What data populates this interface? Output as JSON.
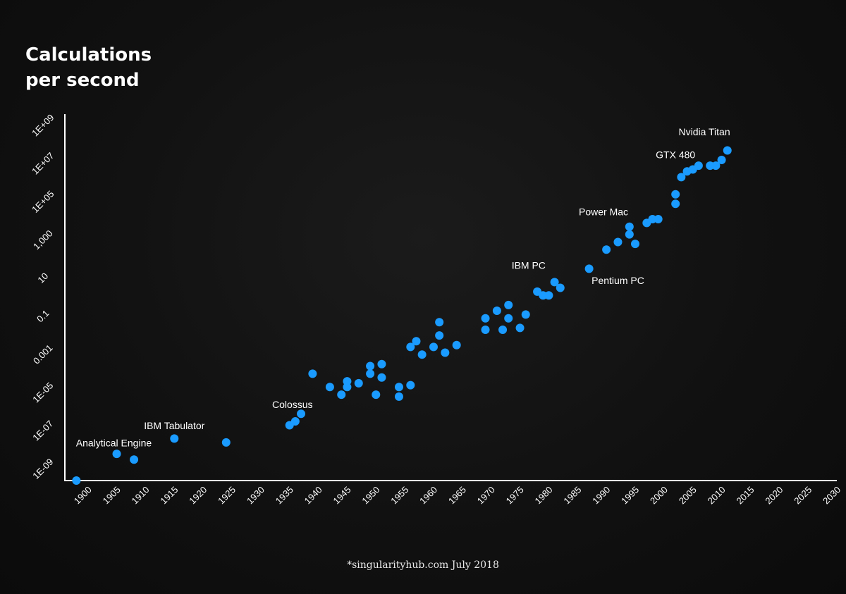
{
  "title_line1": "Calculations",
  "title_line2": "per second",
  "source": "*singularityhub.com July 2018",
  "colors": {
    "point": "#1a9bff",
    "axis": "#ffffff",
    "background": "#111111",
    "text": "#ffffff"
  },
  "chart_data": {
    "type": "scatter",
    "title": "Calculations per second",
    "xlabel": "",
    "ylabel": "",
    "xlim": [
      1897,
      2031
    ],
    "ylim": [
      -9.5,
      9.7
    ],
    "y_scale": "log",
    "grid": false,
    "x_ticks": [
      1900,
      1905,
      1910,
      1915,
      1920,
      1925,
      1930,
      1935,
      1940,
      1945,
      1950,
      1955,
      1960,
      1965,
      1970,
      1975,
      1980,
      1985,
      1990,
      1995,
      2000,
      2005,
      2010,
      2015,
      2020,
      2025,
      2030
    ],
    "y_ticks": [
      {
        "label": "1E-09",
        "log10": -9
      },
      {
        "label": "1E-07",
        "log10": -7
      },
      {
        "label": "1E-05",
        "log10": -5
      },
      {
        "label": "0.001",
        "log10": -3
      },
      {
        "label": "0.1",
        "log10": -1
      },
      {
        "label": "10",
        "log10": 1
      },
      {
        "label": "1,000",
        "log10": 3
      },
      {
        "label": "1E+05",
        "log10": 5
      },
      {
        "label": "1E+07",
        "log10": 7
      },
      {
        "label": "1E+09",
        "log10": 9
      }
    ],
    "annotations": [
      {
        "text": "Analytical Engine",
        "x": 1905.5,
        "log10": -7.7
      },
      {
        "text": "IBM Tabulator",
        "x": 1916,
        "log10": -6.8
      },
      {
        "text": "Colossus",
        "x": 1936.5,
        "log10": -5.7
      },
      {
        "text": "IBM PC",
        "x": 1977.5,
        "log10": 1.6
      },
      {
        "text": "Pentium PC",
        "x": 1993,
        "log10": 0.8
      },
      {
        "text": "Power Mac",
        "x": 1990.5,
        "log10": 4.4
      },
      {
        "text": "GTX 480",
        "x": 2003,
        "log10": 7.4
      },
      {
        "text": "Nvidia Titan",
        "x": 2008,
        "log10": 8.6
      }
    ],
    "points": [
      [
        1899,
        -9.5
      ],
      [
        1906,
        -8.1
      ],
      [
        1909,
        -8.4
      ],
      [
        1916,
        -7.3
      ],
      [
        1925,
        -7.5
      ],
      [
        1936,
        -6.6
      ],
      [
        1937,
        -6.4
      ],
      [
        1938,
        -6.0
      ],
      [
        1940,
        -3.9
      ],
      [
        1943,
        -4.6
      ],
      [
        1945,
        -5.0
      ],
      [
        1946,
        -4.6
      ],
      [
        1946,
        -4.3
      ],
      [
        1948,
        -4.4
      ],
      [
        1950,
        -3.5
      ],
      [
        1950,
        -3.9
      ],
      [
        1951,
        -5.0
      ],
      [
        1952,
        -3.4
      ],
      [
        1952,
        -4.1
      ],
      [
        1955,
        -4.6
      ],
      [
        1955,
        -5.1
      ],
      [
        1957,
        -4.5
      ],
      [
        1957,
        -2.5
      ],
      [
        1958,
        -2.2
      ],
      [
        1959,
        -2.9
      ],
      [
        1961,
        -2.5
      ],
      [
        1962,
        -1.9
      ],
      [
        1962,
        -1.2
      ],
      [
        1963,
        -2.8
      ],
      [
        1965,
        -2.4
      ],
      [
        1970,
        -1.0
      ],
      [
        1970,
        -1.6
      ],
      [
        1972,
        -0.6
      ],
      [
        1973,
        -1.6
      ],
      [
        1974,
        -0.3
      ],
      [
        1974,
        -1.0
      ],
      [
        1976,
        -1.5
      ],
      [
        1977,
        -0.8
      ],
      [
        1979,
        0.4
      ],
      [
        1980,
        0.2
      ],
      [
        1981,
        0.2
      ],
      [
        1982,
        0.9
      ],
      [
        1983,
        0.6
      ],
      [
        1988,
        1.6
      ],
      [
        1991,
        2.6
      ],
      [
        1993,
        3.0
      ],
      [
        1995,
        3.8
      ],
      [
        1995,
        3.4
      ],
      [
        1996,
        2.9
      ],
      [
        1998,
        4.0
      ],
      [
        1999,
        4.2
      ],
      [
        2000,
        4.2
      ],
      [
        2003,
        5.0
      ],
      [
        2003,
        5.5
      ],
      [
        2004,
        6.4
      ],
      [
        2005,
        6.7
      ],
      [
        2006,
        6.8
      ],
      [
        2007,
        7.0
      ],
      [
        2009,
        7.0
      ],
      [
        2010,
        7.0
      ],
      [
        2011,
        7.3
      ],
      [
        2012,
        7.8
      ]
    ]
  }
}
